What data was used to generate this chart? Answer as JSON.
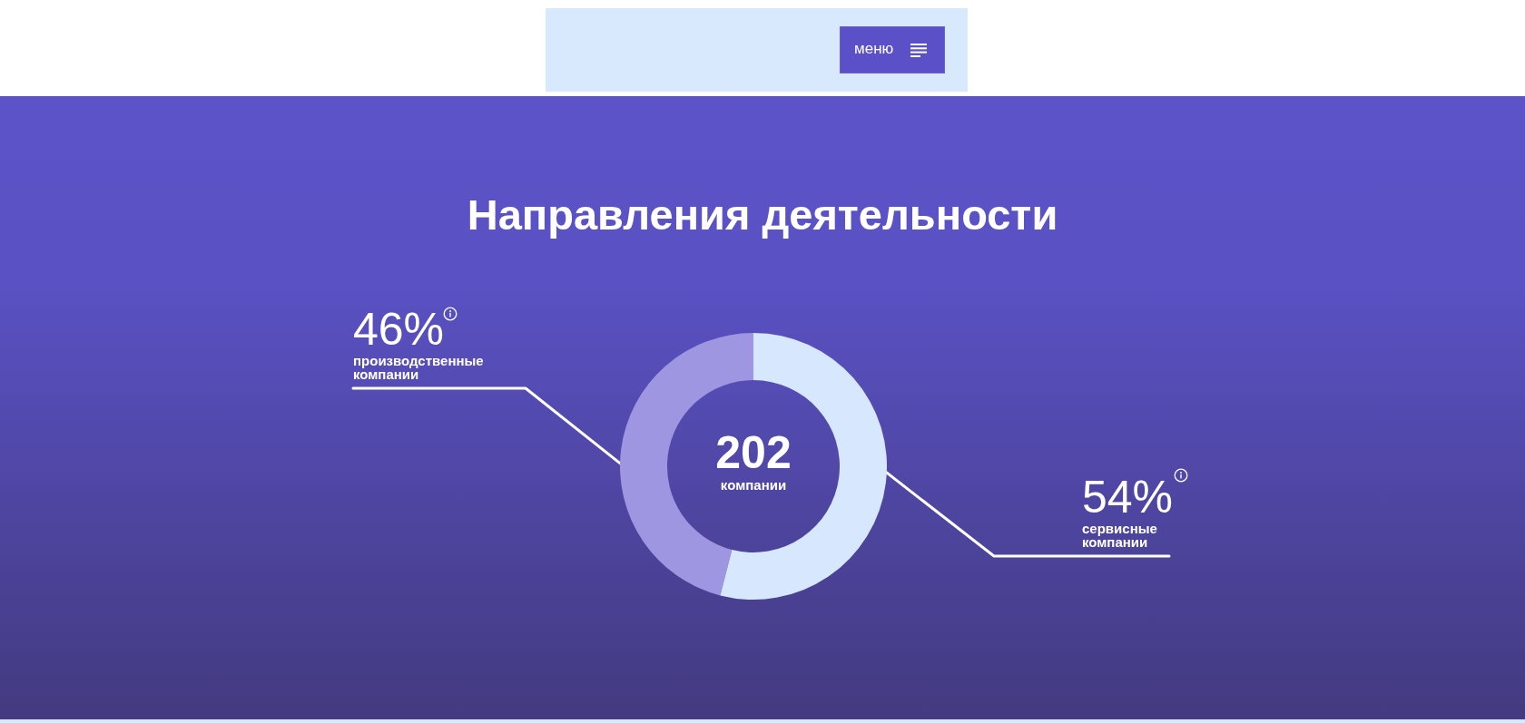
{
  "chart_data": {
    "type": "donut",
    "title": "Направления деятельности",
    "categories": [
      "производственные компании",
      "сервисные компании"
    ],
    "values": [
      46,
      54
    ],
    "colors": [
      "#9e96e0",
      "#d7e7fd"
    ],
    "value_labels": [
      "46%",
      "54%"
    ],
    "annotations": [
      "202",
      "компании",
      "меню"
    ]
  }
}
